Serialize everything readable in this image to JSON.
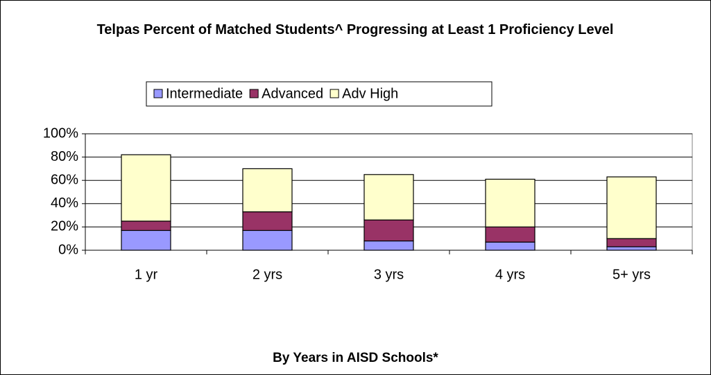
{
  "chart_data": {
    "type": "stacked_bar",
    "title": "Telpas Percent of Matched Students^ Progressing at Least 1 Proficiency Level",
    "x_label": "By Years in AISD Schools*",
    "categories": [
      "1 yr",
      "2 yrs",
      "3 yrs",
      "4 yrs",
      "5+ yrs"
    ],
    "series": [
      {
        "name": "Intermediate",
        "color": "#9999ff",
        "values": [
          17,
          17,
          8,
          7,
          3
        ]
      },
      {
        "name": "Advanced",
        "color": "#993366",
        "values": [
          8,
          16,
          18,
          13,
          7
        ]
      },
      {
        "name": "Adv High",
        "color": "#ffffcc",
        "values": [
          57,
          37,
          39,
          41,
          53
        ]
      }
    ],
    "ylim": [
      0,
      100
    ],
    "yticks": [
      {
        "value": 0,
        "label": "0%"
      },
      {
        "value": 20,
        "label": "20%"
      },
      {
        "value": 40,
        "label": "40%"
      },
      {
        "value": 60,
        "label": "60%"
      },
      {
        "value": 80,
        "label": "80%"
      },
      {
        "value": 100,
        "label": "100%"
      }
    ],
    "grid": true,
    "legend": "top"
  }
}
